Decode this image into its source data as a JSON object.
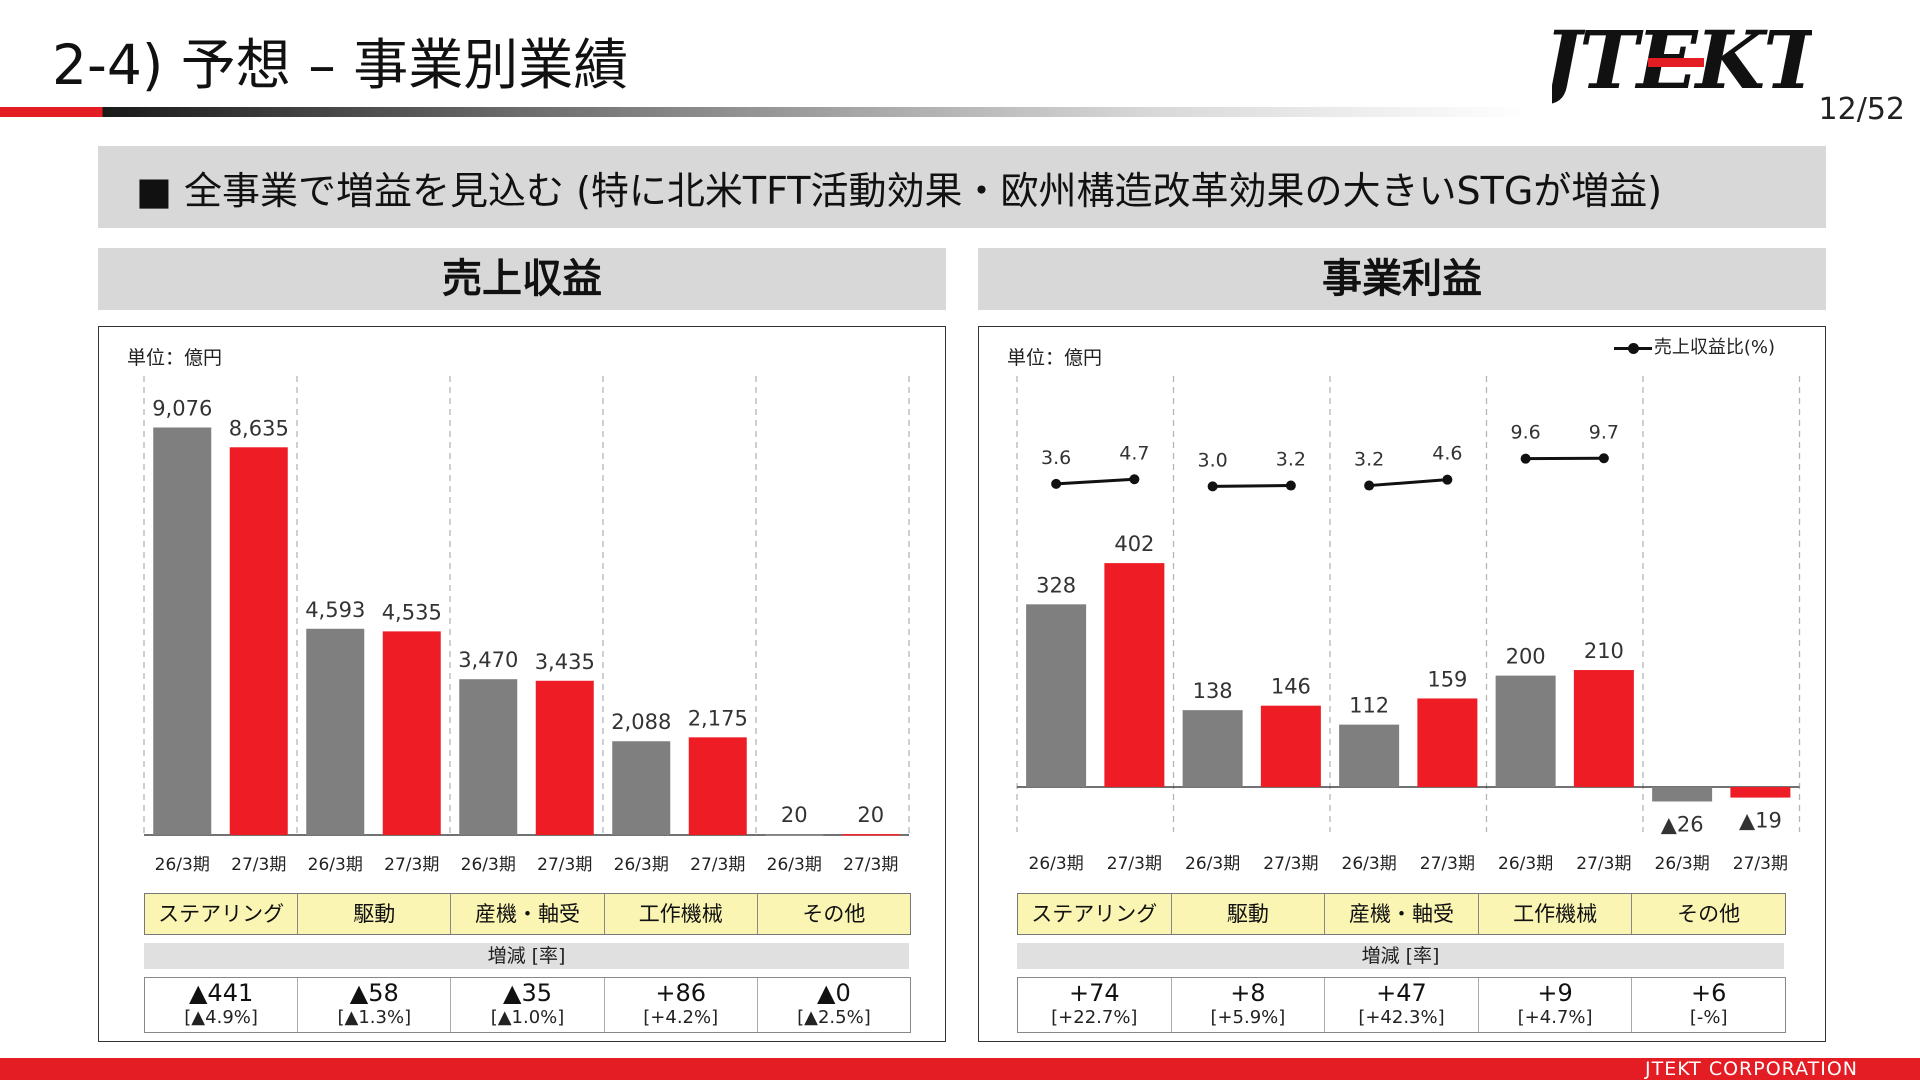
{
  "title": "2-4) 予想 – 事業別業績",
  "logo_text": "JTEKT",
  "page_number": "12/52",
  "headline": "■ 全事業で増益を見込む (特に北米TFT活動効果・欧州構造改革効果の大きいSTGが増益)",
  "footer": "JTEKT  CORPORATION",
  "colors": {
    "prev": "#7f7f7f",
    "curr": "#ee1c25",
    "brand": "#e41c23",
    "label_bg": "#faf5b2"
  },
  "chart_data": [
    {
      "type": "bar",
      "title": "売上収益",
      "unit": "単位：億円",
      "categories": [
        "ステアリング",
        "駆動",
        "産機・軸受",
        "工作機械",
        "その他"
      ],
      "series": [
        {
          "name": "26/3期",
          "values": [
            9076,
            4593,
            3470,
            2088,
            20
          ],
          "labels": [
            "9,076",
            "4,593",
            "3,470",
            "2,088",
            "20"
          ]
        },
        {
          "name": "27/3期",
          "values": [
            8635,
            4535,
            3435,
            2175,
            20
          ],
          "labels": [
            "8,635",
            "4,535",
            "3,435",
            "2,175",
            "20"
          ]
        }
      ],
      "ylim": [
        0,
        10000
      ],
      "change_header": "増減 [率]",
      "changes": [
        {
          "value": "▲441",
          "rate": "[▲4.9%]"
        },
        {
          "value": "▲58",
          "rate": "[▲1.3%]"
        },
        {
          "value": "▲35",
          "rate": "[▲1.0%]"
        },
        {
          "value": "+86",
          "rate": "[+4.2%]"
        },
        {
          "value": "▲0",
          "rate": "[▲2.5%]"
        }
      ]
    },
    {
      "type": "bar",
      "title": "事業利益",
      "unit": "単位：億円",
      "legend": "売上収益比(%)",
      "categories": [
        "ステアリング",
        "駆動",
        "産機・軸受",
        "工作機械",
        "その他"
      ],
      "series": [
        {
          "name": "26/3期",
          "values": [
            328,
            138,
            112,
            200,
            -26
          ],
          "labels": [
            "328",
            "138",
            "112",
            "200",
            "▲26"
          ]
        },
        {
          "name": "27/3期",
          "values": [
            402,
            146,
            159,
            210,
            -19
          ],
          "labels": [
            "402",
            "146",
            "159",
            "210",
            "▲19"
          ]
        }
      ],
      "margin_series": {
        "name": "売上収益比(%)",
        "values": [
          [
            3.6,
            4.7
          ],
          [
            3.0,
            3.2
          ],
          [
            3.2,
            4.6
          ],
          [
            9.6,
            9.7
          ],
          null
        ],
        "labels": [
          [
            "3.6",
            "4.7"
          ],
          [
            "3.0",
            "3.2"
          ],
          [
            "3.2",
            "4.6"
          ],
          [
            "9.6",
            "9.7"
          ],
          null
        ]
      },
      "ylim": [
        -60,
        720
      ],
      "change_header": "増減 [率]",
      "changes": [
        {
          "value": "+74",
          "rate": "[+22.7%]"
        },
        {
          "value": "+8",
          "rate": "[+5.9%]"
        },
        {
          "value": "+47",
          "rate": "[+42.3%]"
        },
        {
          "value": "+9",
          "rate": "[+4.7%]"
        },
        {
          "value": "+6",
          "rate": "[-%]"
        }
      ]
    }
  ]
}
